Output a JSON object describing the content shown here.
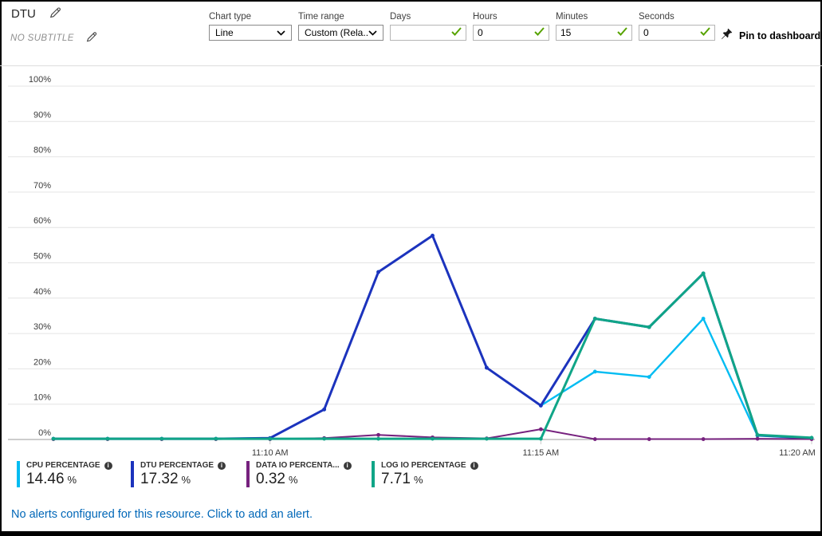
{
  "header": {
    "title": "DTU",
    "subtitle": "NO SUBTITLE",
    "controls": {
      "chart_type": {
        "label": "Chart type",
        "value": "Line"
      },
      "time_range": {
        "label": "Time range",
        "value": "Custom (Rela..."
      },
      "days": {
        "label": "Days",
        "value": ""
      },
      "hours": {
        "label": "Hours",
        "value": "0"
      },
      "minutes": {
        "label": "Minutes",
        "value": "15"
      },
      "seconds": {
        "label": "Seconds",
        "value": "0"
      }
    },
    "pin_label": "Pin to dashboard"
  },
  "chart_data": {
    "type": "line",
    "x": [
      "11:06 AM",
      "11:07 AM",
      "11:08 AM",
      "11:09 AM",
      "11:10 AM",
      "11:11 AM",
      "11:12 AM",
      "11:13 AM",
      "11:14 AM",
      "11:15 AM",
      "11:16 AM",
      "11:17 AM",
      "11:18 AM",
      "11:19 AM",
      "11:20 AM"
    ],
    "x_tick_labels": [
      {
        "index": 4,
        "label": "11:10 AM"
      },
      {
        "index": 9,
        "label": "11:15 AM"
      },
      {
        "index": 14,
        "label": "11:20 AM"
      }
    ],
    "ylim": [
      0,
      100
    ],
    "y_ticks": [
      {
        "pct": 0,
        "label": "0%"
      },
      {
        "pct": 10,
        "label": "10%"
      },
      {
        "pct": 20,
        "label": "20%"
      },
      {
        "pct": 30,
        "label": "30%"
      },
      {
        "pct": 40,
        "label": "40%"
      },
      {
        "pct": 50,
        "label": "50%"
      },
      {
        "pct": 60,
        "label": "60%"
      },
      {
        "pct": 70,
        "label": "70%"
      },
      {
        "pct": 80,
        "label": "80%"
      },
      {
        "pct": 90,
        "label": "90%"
      },
      {
        "pct": 100,
        "label": "100%"
      }
    ],
    "grid": true,
    "legend_position": "bottom",
    "series": [
      {
        "name": "CPU PERCENTAGE",
        "color": "#00bcf2",
        "current_value": "14.46",
        "unit": "%",
        "values": [
          0.2,
          0.2,
          0.2,
          0.2,
          0.4,
          8.5,
          47.4,
          57.7,
          20.3,
          9.6,
          19.2,
          17.7,
          34.2,
          1.1,
          0.3
        ]
      },
      {
        "name": "DTU PERCENTAGE",
        "color": "#1c33bd",
        "current_value": "17.32",
        "unit": "%",
        "values": [
          0.2,
          0.2,
          0.2,
          0.2,
          0.4,
          8.5,
          47.4,
          57.7,
          20.3,
          9.6,
          34.2,
          31.8,
          47.0,
          1.2,
          0.4
        ]
      },
      {
        "name": "DATA IO PERCENTA...",
        "color": "#76217e",
        "current_value": "0.32",
        "unit": "%",
        "values": [
          0.1,
          0.1,
          0.1,
          0.1,
          0.1,
          0.4,
          1.3,
          0.6,
          0.3,
          2.9,
          0.1,
          0.1,
          0.1,
          0.2,
          0.1
        ]
      },
      {
        "name": "LOG IO PERCENTAGE",
        "color": "#10a587",
        "current_value": "7.71",
        "unit": "%",
        "values": [
          0.2,
          0.2,
          0.2,
          0.2,
          0.2,
          0.2,
          0.2,
          0.2,
          0.2,
          0.2,
          34.2,
          31.8,
          47.0,
          1.3,
          0.5
        ]
      }
    ]
  },
  "footer": {
    "alert_text": "No alerts configured for this resource. Click to add an alert."
  }
}
